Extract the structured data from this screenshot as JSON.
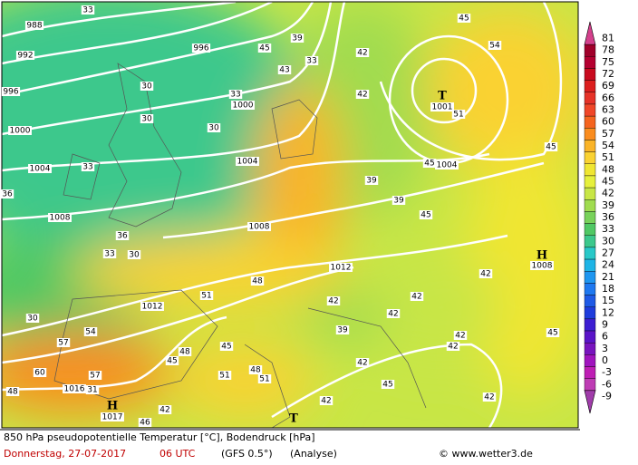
{
  "map": {
    "pressure_labels": [
      "988",
      "992",
      "996",
      "996",
      "1000",
      "1000",
      "1004",
      "1004",
      "1004",
      "1008",
      "1008",
      "1012",
      "1012",
      "1016",
      "1017",
      "1001",
      "1008"
    ],
    "centers": [
      "T",
      "H",
      "H",
      "T"
    ],
    "temperature_labels": [
      "33",
      "39",
      "45",
      "43",
      "33",
      "42",
      "42",
      "30",
      "30",
      "33",
      "30",
      "33",
      "36",
      "39",
      "39",
      "45",
      "36",
      "33",
      "30",
      "48",
      "51",
      "42",
      "39",
      "30",
      "54",
      "57",
      "48",
      "45",
      "45",
      "42",
      "42",
      "42",
      "45",
      "45",
      "42",
      "54",
      "45",
      "60",
      "57",
      "51",
      "48",
      "51",
      "42",
      "42",
      "45",
      "42",
      "42",
      "42",
      "46",
      "31",
      "48",
      "51",
      "45"
    ]
  },
  "legend": {
    "values": [
      81,
      78,
      75,
      72,
      69,
      66,
      63,
      60,
      57,
      54,
      51,
      48,
      45,
      42,
      39,
      36,
      33,
      30,
      27,
      24,
      21,
      18,
      15,
      12,
      9,
      6,
      3,
      0,
      -3,
      -6,
      -9
    ],
    "colors": [
      "#d4408c",
      "#a0002a",
      "#b40030",
      "#c80a1e",
      "#dc1e1e",
      "#e63228",
      "#f04628",
      "#f5641e",
      "#fa8c1e",
      "#fab428",
      "#fad232",
      "#f0e632",
      "#e6f03c",
      "#c8e646",
      "#a0dc50",
      "#78d25a",
      "#50c864",
      "#3cc88c",
      "#28c8c8",
      "#1eb4e6",
      "#1e96f0",
      "#1e78f0",
      "#1e5ae6",
      "#1e3cdc",
      "#3c1ed2",
      "#5a14c8",
      "#7814be",
      "#a014be",
      "#be1eb4",
      "#be3cb4",
      "#a03caa"
    ]
  },
  "footer": {
    "title": "850 hPa pseudopotentielle Temperatur [°C], Bodendruck [hPa]",
    "date": "Donnerstag, 27-07-2017",
    "time": "06 UTC",
    "model": "(GFS 0.5°)",
    "run": "(Analyse)",
    "credit": "© www.wetter3.de"
  }
}
